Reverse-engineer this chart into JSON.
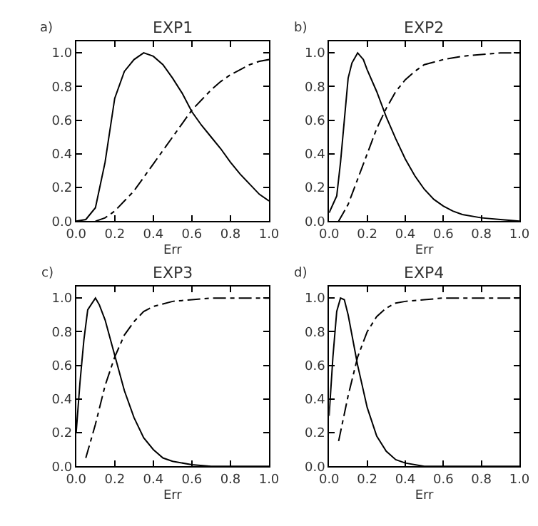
{
  "chart_data": [
    {
      "type": "line",
      "title": "EXP1",
      "xlabel": "Err",
      "annotations": [
        "a)"
      ],
      "xlim": [
        0,
        1
      ],
      "ylim": [
        0,
        1.07
      ],
      "xticks": [
        {
          "value": 0,
          "label": "0.0"
        },
        {
          "value": 0.2,
          "label": "0.2"
        },
        {
          "value": 0.4,
          "label": "0.4"
        },
        {
          "value": 0.6,
          "label": "0.6"
        },
        {
          "value": 0.8,
          "label": "0.8"
        },
        {
          "value": 1,
          "label": "1.0"
        }
      ],
      "yticks": [
        {
          "value": 0,
          "label": "0.0"
        },
        {
          "value": 0.2,
          "label": "0.2"
        },
        {
          "value": 0.4,
          "label": "0.4"
        },
        {
          "value": 0.6,
          "label": "0.6"
        },
        {
          "value": 0.8,
          "label": "0.8"
        },
        {
          "value": 1,
          "label": "1.0"
        }
      ],
      "series": [
        {
          "color": "#000000",
          "line_style": "solid",
          "x": [
            0,
            0.05,
            0.1,
            0.15,
            0.2,
            0.25,
            0.3,
            0.35,
            0.4,
            0.45,
            0.5,
            0.55,
            0.6,
            0.65,
            0.7,
            0.75,
            0.8,
            0.85,
            0.9,
            0.95,
            1.0
          ],
          "values": [
            0,
            0.01,
            0.08,
            0.35,
            0.73,
            0.89,
            0.96,
            1.0,
            0.98,
            0.93,
            0.85,
            0.76,
            0.65,
            0.57,
            0.5,
            0.43,
            0.35,
            0.28,
            0.22,
            0.16,
            0.12
          ]
        },
        {
          "color": "#000000",
          "line_style": "dashed",
          "x": [
            0.1,
            0.15,
            0.2,
            0.25,
            0.3,
            0.35,
            0.4,
            0.45,
            0.5,
            0.55,
            0.6,
            0.65,
            0.7,
            0.75,
            0.8,
            0.85,
            0.9,
            0.95,
            1.0
          ],
          "values": [
            0,
            0.02,
            0.06,
            0.12,
            0.18,
            0.26,
            0.34,
            0.42,
            0.5,
            0.58,
            0.66,
            0.72,
            0.78,
            0.83,
            0.87,
            0.9,
            0.93,
            0.95,
            0.96
          ]
        }
      ]
    },
    {
      "type": "line",
      "title": "EXP2",
      "xlabel": "Err",
      "annotations": [
        "b)"
      ],
      "xlim": [
        0,
        1
      ],
      "ylim": [
        0,
        1.07
      ],
      "xticks": [
        {
          "value": 0,
          "label": "0.0"
        },
        {
          "value": 0.2,
          "label": "0.2"
        },
        {
          "value": 0.4,
          "label": "0.4"
        },
        {
          "value": 0.6,
          "label": "0.6"
        },
        {
          "value": 0.8,
          "label": "0.8"
        },
        {
          "value": 1,
          "label": "1.0"
        }
      ],
      "yticks": [
        {
          "value": 0,
          "label": "0.0"
        },
        {
          "value": 0.2,
          "label": "0.2"
        },
        {
          "value": 0.4,
          "label": "0.4"
        },
        {
          "value": 0.6,
          "label": "0.6"
        },
        {
          "value": 0.8,
          "label": "0.8"
        },
        {
          "value": 1,
          "label": "1.0"
        }
      ],
      "series": [
        {
          "color": "#000000",
          "line_style": "solid",
          "x": [
            0,
            0.02,
            0.04,
            0.06,
            0.08,
            0.1,
            0.12,
            0.15,
            0.18,
            0.2,
            0.25,
            0.3,
            0.35,
            0.4,
            0.45,
            0.5,
            0.55,
            0.6,
            0.65,
            0.7,
            0.8,
            0.9,
            1.0
          ],
          "values": [
            0.05,
            0.1,
            0.15,
            0.35,
            0.6,
            0.85,
            0.94,
            1.0,
            0.96,
            0.9,
            0.77,
            0.62,
            0.49,
            0.37,
            0.27,
            0.19,
            0.13,
            0.09,
            0.06,
            0.04,
            0.02,
            0.01,
            0
          ]
        },
        {
          "color": "#000000",
          "line_style": "dashed",
          "x": [
            0.05,
            0.1,
            0.15,
            0.2,
            0.25,
            0.3,
            0.35,
            0.4,
            0.45,
            0.5,
            0.6,
            0.7,
            0.8,
            0.9,
            1.0
          ],
          "values": [
            0,
            0.1,
            0.25,
            0.4,
            0.55,
            0.67,
            0.77,
            0.84,
            0.89,
            0.93,
            0.96,
            0.98,
            0.99,
            1.0,
            1.0
          ]
        }
      ]
    },
    {
      "type": "line",
      "title": "EXP3",
      "xlabel": "Err",
      "annotations": [
        "c)"
      ],
      "xlim": [
        0,
        1
      ],
      "ylim": [
        0,
        1.07
      ],
      "xticks": [
        {
          "value": 0,
          "label": "0.0"
        },
        {
          "value": 0.2,
          "label": "0.2"
        },
        {
          "value": 0.4,
          "label": "0.4"
        },
        {
          "value": 0.6,
          "label": "0.6"
        },
        {
          "value": 0.8,
          "label": "0.8"
        },
        {
          "value": 1,
          "label": "1.0"
        }
      ],
      "yticks": [
        {
          "value": 0,
          "label": "0.0"
        },
        {
          "value": 0.2,
          "label": "0.2"
        },
        {
          "value": 0.4,
          "label": "0.4"
        },
        {
          "value": 0.6,
          "label": "0.6"
        },
        {
          "value": 0.8,
          "label": "0.8"
        },
        {
          "value": 1,
          "label": "1.0"
        }
      ],
      "series": [
        {
          "color": "#000000",
          "line_style": "solid",
          "x": [
            0,
            0.02,
            0.04,
            0.06,
            0.1,
            0.12,
            0.15,
            0.2,
            0.25,
            0.3,
            0.35,
            0.4,
            0.45,
            0.5,
            0.6,
            0.7,
            1.0
          ],
          "values": [
            0.2,
            0.5,
            0.75,
            0.93,
            1.0,
            0.96,
            0.87,
            0.66,
            0.45,
            0.29,
            0.17,
            0.1,
            0.05,
            0.03,
            0.01,
            0,
            0
          ]
        },
        {
          "color": "#000000",
          "line_style": "dashed",
          "x": [
            0.05,
            0.1,
            0.15,
            0.2,
            0.25,
            0.3,
            0.35,
            0.4,
            0.5,
            0.6,
            0.7,
            1.0
          ],
          "values": [
            0.05,
            0.25,
            0.48,
            0.65,
            0.78,
            0.86,
            0.92,
            0.95,
            0.98,
            0.99,
            1.0,
            1.0
          ]
        }
      ]
    },
    {
      "type": "line",
      "title": "EXP4",
      "xlabel": "Err",
      "annotations": [
        "d)"
      ],
      "xlim": [
        0,
        1
      ],
      "ylim": [
        0,
        1.07
      ],
      "xticks": [
        {
          "value": 0,
          "label": "0.0"
        },
        {
          "value": 0.2,
          "label": "0.2"
        },
        {
          "value": 0.4,
          "label": "0.4"
        },
        {
          "value": 0.6,
          "label": "0.6"
        },
        {
          "value": 0.8,
          "label": "0.8"
        },
        {
          "value": 1,
          "label": "1.0"
        }
      ],
      "yticks": [
        {
          "value": 0,
          "label": "0.0"
        },
        {
          "value": 0.2,
          "label": "0.2"
        },
        {
          "value": 0.4,
          "label": "0.4"
        },
        {
          "value": 0.6,
          "label": "0.6"
        },
        {
          "value": 0.8,
          "label": "0.8"
        },
        {
          "value": 1,
          "label": "1.0"
        }
      ],
      "series": [
        {
          "color": "#000000",
          "line_style": "solid",
          "x": [
            0,
            0.02,
            0.04,
            0.06,
            0.08,
            0.1,
            0.15,
            0.2,
            0.25,
            0.3,
            0.35,
            0.4,
            0.5,
            0.6,
            1.0
          ],
          "values": [
            0.3,
            0.65,
            0.92,
            1.0,
            0.99,
            0.9,
            0.6,
            0.35,
            0.18,
            0.09,
            0.04,
            0.02,
            0,
            0,
            0
          ]
        },
        {
          "color": "#000000",
          "line_style": "dashed",
          "x": [
            0.05,
            0.1,
            0.15,
            0.2,
            0.25,
            0.3,
            0.35,
            0.4,
            0.5,
            0.6,
            1.0
          ],
          "values": [
            0.15,
            0.42,
            0.65,
            0.8,
            0.89,
            0.94,
            0.97,
            0.98,
            0.99,
            1.0,
            1.0
          ]
        }
      ]
    }
  ]
}
